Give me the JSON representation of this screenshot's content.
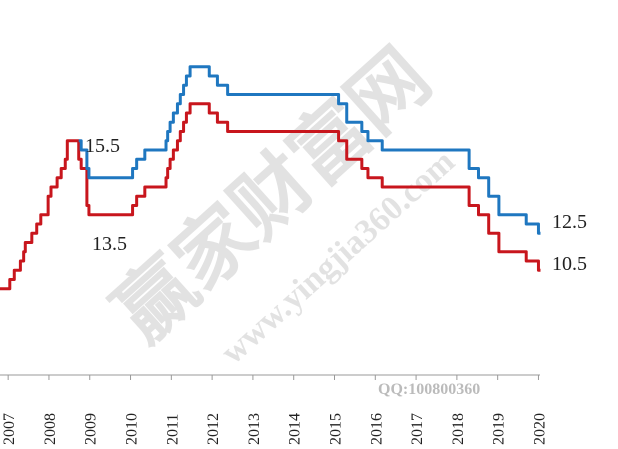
{
  "chart_data": {
    "type": "line",
    "step": "post",
    "xlim": [
      2006.8,
      2020.05
    ],
    "ylim": [
      5,
      25
    ],
    "xticks": [
      2007,
      2008,
      2009,
      2010,
      2011,
      2012,
      2013,
      2014,
      2015,
      2016,
      2017,
      2018,
      2019,
      2020
    ],
    "series": [
      {
        "color": "#c8161d",
        "x": [
          2006.8,
          2007.04,
          2007.15,
          2007.3,
          2007.38,
          2007.42,
          2007.58,
          2007.7,
          2007.8,
          2007.98,
          2008.05,
          2008.2,
          2008.3,
          2008.4,
          2008.45,
          2008.73,
          2008.79,
          2008.93,
          2008.98,
          2010.05,
          2010.15,
          2010.35,
          2010.87,
          2010.91,
          2010.97,
          2011.05,
          2011.15,
          2011.22,
          2011.3,
          2011.37,
          2011.46,
          2011.93,
          2012.13,
          2012.38,
          2015.1,
          2015.3,
          2015.67,
          2015.82,
          2016.17,
          2018.3,
          2018.53,
          2018.78,
          2019.03,
          2019.7,
          2020.0,
          2020.05
        ],
        "values": [
          9.5,
          10,
          10.5,
          11,
          11.5,
          12,
          12.5,
          13,
          13.5,
          14.5,
          15,
          15.5,
          16,
          16.5,
          17.5,
          16.5,
          16,
          14,
          13.5,
          14,
          14.5,
          15,
          15.5,
          16,
          16.5,
          17,
          17.5,
          18,
          18.5,
          19,
          19.5,
          19,
          18.5,
          18,
          17.5,
          16.5,
          16,
          15.5,
          15,
          14,
          13.5,
          12.5,
          11.5,
          11,
          10.5,
          10.5
        ]
      },
      {
        "color": "#1f77c0",
        "x": [
          2008.73,
          2008.79,
          2008.93,
          2008.98,
          2010.05,
          2010.15,
          2010.35,
          2010.87,
          2010.91,
          2010.97,
          2011.05,
          2011.15,
          2011.22,
          2011.3,
          2011.37,
          2011.46,
          2011.93,
          2012.13,
          2012.38,
          2015.1,
          2015.3,
          2015.67,
          2015.82,
          2016.17,
          2018.3,
          2018.53,
          2018.78,
          2019.03,
          2019.7,
          2020.0,
          2020.05
        ],
        "values": [
          17.5,
          17,
          16,
          15.5,
          16,
          16.5,
          17,
          17.5,
          18,
          18.5,
          19,
          19.5,
          20,
          20.5,
          21,
          21.5,
          21,
          20.5,
          20,
          19.5,
          18.5,
          18,
          17.5,
          17,
          16,
          15.5,
          14.5,
          13.5,
          13,
          12.5,
          12.5
        ]
      }
    ],
    "annotations": [
      "15.5",
      "13.5",
      "12.5",
      "10.5"
    ],
    "watermarks": [
      "赢家财富网",
      "www.yingjia360.com",
      "QQ:100800360"
    ]
  }
}
